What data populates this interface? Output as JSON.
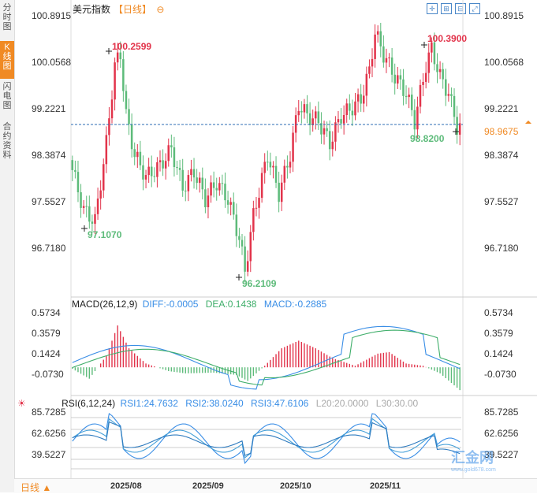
{
  "sidebar": {
    "tabs": [
      "分时图",
      "K线图",
      "闪电图",
      "合约资料"
    ],
    "active": 1
  },
  "header": {
    "name": "美元指数",
    "period": "【日线】",
    "settings_icon": "circle-minus-icon",
    "icons": [
      "crosshair-icon",
      "zoom-in-icon",
      "zoom-out-icon",
      "expand-icon"
    ]
  },
  "main_chart": {
    "y_labels": [
      "100.8915",
      "100.0568",
      "99.2221",
      "98.3874",
      "97.5527",
      "96.7180"
    ],
    "current_price": "98.9675",
    "annotations": {
      "high1": "100.2599",
      "low1": "97.1070",
      "low2": "96.2109",
      "high2": "100.3900",
      "last_low": "98.8200"
    },
    "colors": {
      "up": "#e2344b",
      "down": "#5dbb7a",
      "current_line": "#2d6db5",
      "current_badge": "#f08a24"
    }
  },
  "macd": {
    "title": "MACD(26,12,9)",
    "diff": "DIFF:-0.0005",
    "dea": "DEA:0.1438",
    "macd": "MACD:-0.2885",
    "y_labels": [
      "0.5734",
      "0.3579",
      "0.1424",
      "-0.0730"
    ]
  },
  "rsi": {
    "title": "RSI(6,12,24)",
    "rsi1": "RSI1:24.7632",
    "rsi2": "RSI2:38.0240",
    "rsi3": "RSI3:47.6106",
    "l20": "L20:20.0000",
    "l30": "L30:30.00",
    "y_labels": [
      "85.7285",
      "62.6256",
      "39.5227"
    ],
    "icon": "sun-icon"
  },
  "x_labels": [
    "2025/08",
    "2025/09",
    "2025/10",
    "2025/11"
  ],
  "bottom": {
    "period_select": "日线 ▲"
  },
  "watermark": {
    "text": "汇金网",
    "sub": "www.gold678.com"
  }
}
